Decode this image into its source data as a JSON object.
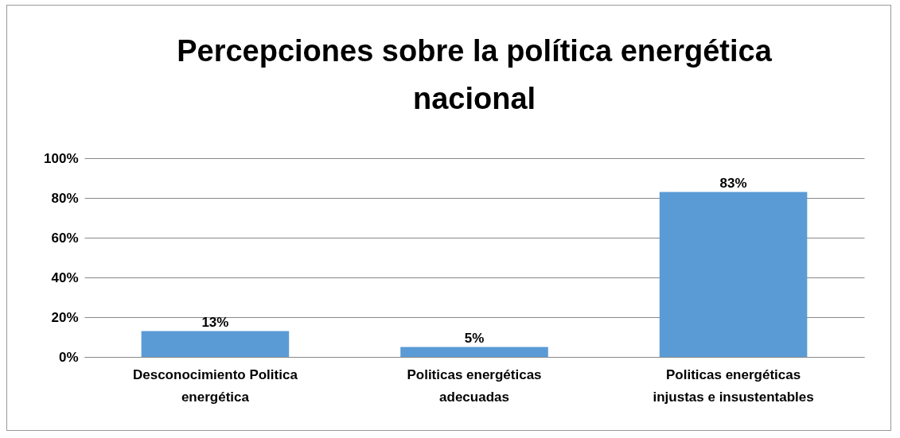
{
  "chart_data": {
    "type": "bar",
    "title": "Percepciones sobre la política energética nacional",
    "categories": [
      "Desconocimiento Politica energética",
      "Politicas energéticas adecuadas",
      "Politicas energéticas injustas e insustentables"
    ],
    "values": [
      13,
      5,
      83
    ],
    "value_labels": [
      "13%",
      "5%",
      "83%"
    ],
    "color": "#5b9bd5",
    "ylim": [
      0,
      100
    ],
    "yticks": [
      {
        "value": 0,
        "label": "0%"
      },
      {
        "value": 20,
        "label": "20%"
      },
      {
        "value": 40,
        "label": "40%"
      },
      {
        "value": 60,
        "label": "60%"
      },
      {
        "value": 80,
        "label": "80%"
      },
      {
        "value": 100,
        "label": "100%"
      }
    ],
    "grid": "y"
  }
}
